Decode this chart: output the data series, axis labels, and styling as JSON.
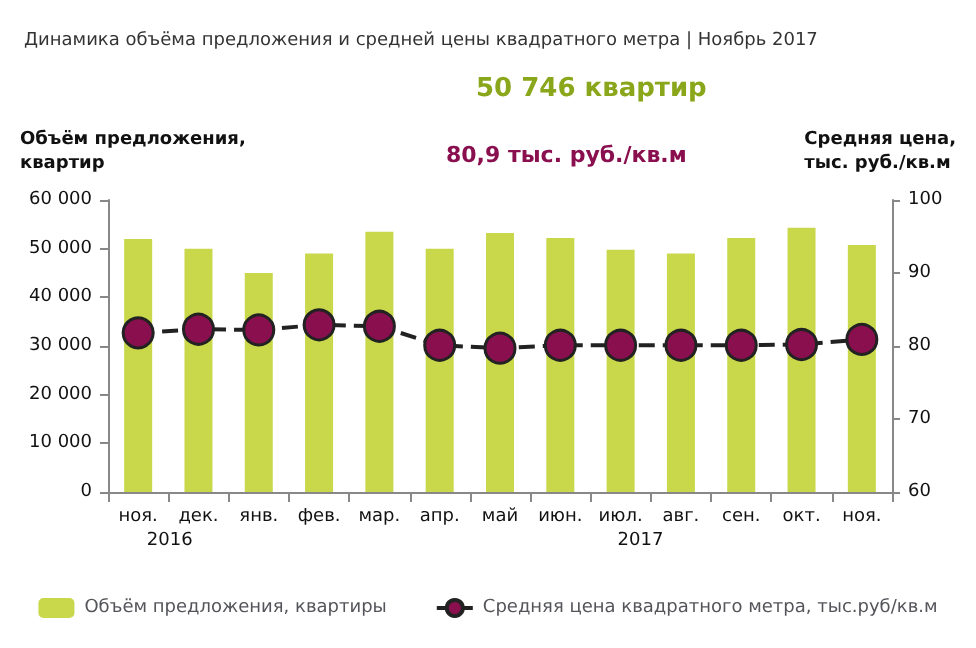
{
  "chart_data": {
    "type": "bar",
    "title": "Динамика объёма предложения и средней цены квадратного метра | Ноябрь 2017",
    "ylabel": "Объём предложения,\nквартир",
    "y2label": "Средняя цена,\nтыс. руб./кв.м",
    "categories": [
      "ноя.",
      "дек.",
      "янв.",
      "фев.",
      "мар.",
      "апр.",
      "май",
      "июн.",
      "июл.",
      "авг.",
      "сен.",
      "окт.",
      "ноя."
    ],
    "series": [
      {
        "name": "Объём предложения, квартиры",
        "color": "#c8d84a",
        "values": [
          52000,
          50000,
          45000,
          49000,
          53500,
          50000,
          53200,
          52200,
          49800,
          49000,
          52200,
          54300,
          50746
        ]
      },
      {
        "name": "Средняя цена квадратного метра, тыс.руб/кв.м",
        "type": "line",
        "axis": "y2",
        "color": "#8a0f4f",
        "line_style": "dashed",
        "marker": "circle",
        "values": [
          81.8,
          82.3,
          82.2,
          82.9,
          82.7,
          80.1,
          79.7,
          80.1,
          80.1,
          80.1,
          80.1,
          80.2,
          80.9
        ]
      }
    ],
    "ylim": [
      0,
      60000
    ],
    "yticks": [
      {
        "value": 0,
        "label": "0"
      },
      {
        "value": 10000,
        "label": "10 000"
      },
      {
        "value": 20000,
        "label": "20 000"
      },
      {
        "value": 30000,
        "label": "30 000"
      },
      {
        "value": 40000,
        "label": "40 000"
      },
      {
        "value": 50000,
        "label": "50 000"
      },
      {
        "value": 60000,
        "label": "60 000"
      }
    ],
    "y2lim": [
      60,
      100
    ],
    "y2ticks": [
      60,
      70,
      80,
      90,
      100
    ],
    "annotations": [
      "50 746 квартир",
      "80,9 тыс. руб./кв.м",
      "2016",
      "2017"
    ],
    "grid": false,
    "legend": "bottom"
  }
}
